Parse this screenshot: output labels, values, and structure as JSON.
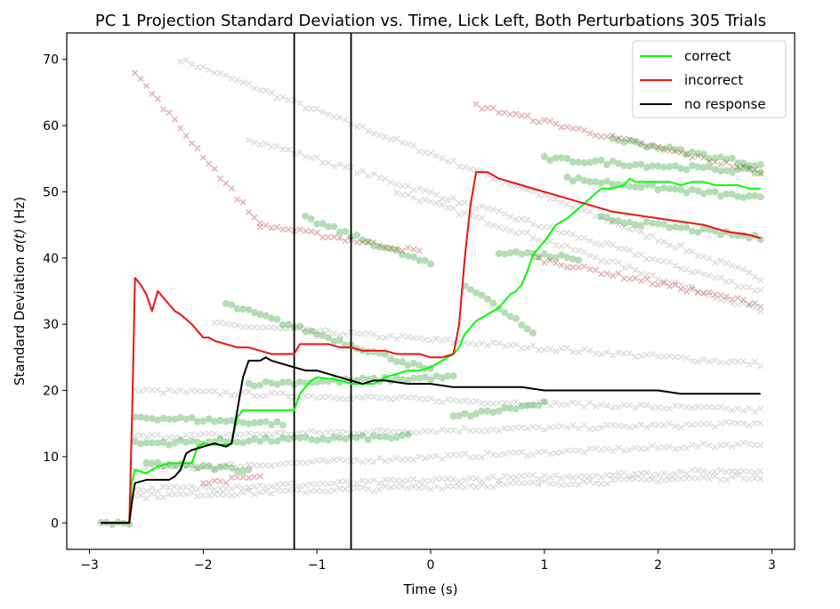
{
  "chart_data": {
    "type": "line",
    "title": "PC 1 Projection Standard Deviation vs. Time, Lick Left, Both Perturbations 305 Trials",
    "xlabel": "Time (s)",
    "ylabel_prefix": "Standard Deviation ",
    "ylabel_symbol": "σ(t)",
    "ylabel_suffix": " (Hz)",
    "xlim": [
      -3.2,
      3.2
    ],
    "ylim": [
      -4,
      74
    ],
    "xticks": [
      -3,
      -2,
      -1,
      0,
      1,
      2,
      3
    ],
    "yticks": [
      0,
      10,
      20,
      30,
      40,
      50,
      60,
      70
    ],
    "xtick_labels": [
      "−3",
      "−2",
      "−1",
      "0",
      "1",
      "2",
      "3"
    ],
    "ytick_labels": [
      "0",
      "10",
      "20",
      "30",
      "40",
      "50",
      "60",
      "70"
    ],
    "vlines": [
      -1.2,
      -0.7
    ],
    "legend_position": "top-right",
    "series": [
      {
        "name": "correct",
        "color": "#00ff00",
        "x": [
          -2.9,
          -2.65,
          -2.63,
          -2.6,
          -2.5,
          -2.4,
          -2.3,
          -2.2,
          -2.1,
          -2.05,
          -2.0,
          -1.95,
          -1.9,
          -1.8,
          -1.75,
          -1.7,
          -1.65,
          -1.6,
          -1.5,
          -1.4,
          -1.3,
          -1.2,
          -1.15,
          -1.1,
          -1.05,
          -1.0,
          -0.9,
          -0.8,
          -0.7,
          -0.6,
          -0.5,
          -0.4,
          -0.3,
          -0.2,
          -0.1,
          0.0,
          0.1,
          0.2,
          0.25,
          0.3,
          0.35,
          0.4,
          0.5,
          0.6,
          0.7,
          0.75,
          0.8,
          0.85,
          0.9,
          1.0,
          1.1,
          1.2,
          1.3,
          1.4,
          1.5,
          1.6,
          1.7,
          1.75,
          1.8,
          1.9,
          2.0,
          2.1,
          2.2,
          2.3,
          2.4,
          2.5,
          2.6,
          2.7,
          2.8,
          2.9
        ],
        "values": [
          0,
          0,
          6,
          8,
          7.5,
          8.5,
          9,
          9,
          9,
          11.5,
          12,
          11.8,
          11.8,
          11.8,
          12,
          16,
          17,
          17,
          17,
          17,
          17,
          17,
          19.5,
          20.5,
          21.5,
          22,
          21.8,
          21.5,
          21,
          21,
          21,
          22,
          22.5,
          23,
          23,
          23.5,
          24.5,
          25.5,
          26.5,
          28.5,
          29.5,
          30.5,
          31.5,
          32.5,
          34.5,
          35,
          36,
          38,
          40.5,
          42.5,
          45,
          46,
          47.5,
          49,
          50.5,
          50.5,
          51,
          52,
          51.5,
          51.5,
          51.5,
          51.5,
          51,
          51.5,
          51.5,
          51,
          51,
          51,
          50.5,
          50.5
        ]
      },
      {
        "name": "incorrect",
        "color": "#ee1111",
        "x": [
          -2.9,
          -2.65,
          -2.62,
          -2.6,
          -2.55,
          -2.5,
          -2.45,
          -2.4,
          -2.35,
          -2.3,
          -2.25,
          -2.2,
          -2.1,
          -2.0,
          -1.95,
          -1.9,
          -1.8,
          -1.7,
          -1.6,
          -1.5,
          -1.4,
          -1.3,
          -1.2,
          -1.15,
          -1.1,
          -1.0,
          -0.9,
          -0.8,
          -0.7,
          -0.6,
          -0.5,
          -0.4,
          -0.3,
          -0.2,
          -0.1,
          0.0,
          0.1,
          0.2,
          0.25,
          0.3,
          0.35,
          0.4,
          0.5,
          0.6,
          0.8,
          1.0,
          1.2,
          1.4,
          1.6,
          1.8,
          2.0,
          2.2,
          2.4,
          2.6,
          2.8,
          2.9
        ],
        "values": [
          0,
          0,
          20,
          37,
          36,
          34.5,
          32,
          35,
          34,
          33,
          32,
          31.5,
          30,
          28,
          28,
          27.5,
          27,
          26.5,
          26.5,
          26,
          25.5,
          25.5,
          25.5,
          27,
          27,
          27,
          27,
          26.5,
          26.5,
          26,
          26,
          26,
          25.5,
          25.5,
          25.5,
          25,
          25,
          25.5,
          30,
          40,
          48,
          53,
          53,
          52,
          51,
          50,
          49,
          48,
          47,
          46.5,
          46,
          45.5,
          45,
          44,
          43.5,
          43
        ]
      },
      {
        "name": "no response",
        "color": "#000000",
        "x": [
          -2.9,
          -2.65,
          -2.62,
          -2.6,
          -2.5,
          -2.4,
          -2.3,
          -2.25,
          -2.2,
          -2.15,
          -2.1,
          -2.0,
          -1.9,
          -1.8,
          -1.75,
          -1.7,
          -1.65,
          -1.6,
          -1.5,
          -1.45,
          -1.4,
          -1.3,
          -1.2,
          -1.1,
          -1.0,
          -0.9,
          -0.8,
          -0.7,
          -0.6,
          -0.5,
          -0.4,
          -0.2,
          0.0,
          0.2,
          0.4,
          0.6,
          0.8,
          1.0,
          1.2,
          1.4,
          1.6,
          1.8,
          2.0,
          2.2,
          2.4,
          2.6,
          2.8,
          2.9
        ],
        "values": [
          0,
          0,
          4,
          6,
          6.5,
          6.5,
          6.5,
          7,
          8,
          10.5,
          11,
          11.5,
          12,
          11.5,
          12,
          17,
          22,
          24.5,
          24.5,
          25,
          24.5,
          24,
          23.5,
          23,
          23,
          22.5,
          22,
          21.5,
          21,
          21.5,
          21.5,
          21,
          21,
          20.5,
          20.5,
          20.5,
          20.5,
          20,
          20,
          20,
          20,
          20,
          20,
          19.5,
          19.5,
          19.5,
          19.5,
          19.5
        ]
      }
    ]
  }
}
